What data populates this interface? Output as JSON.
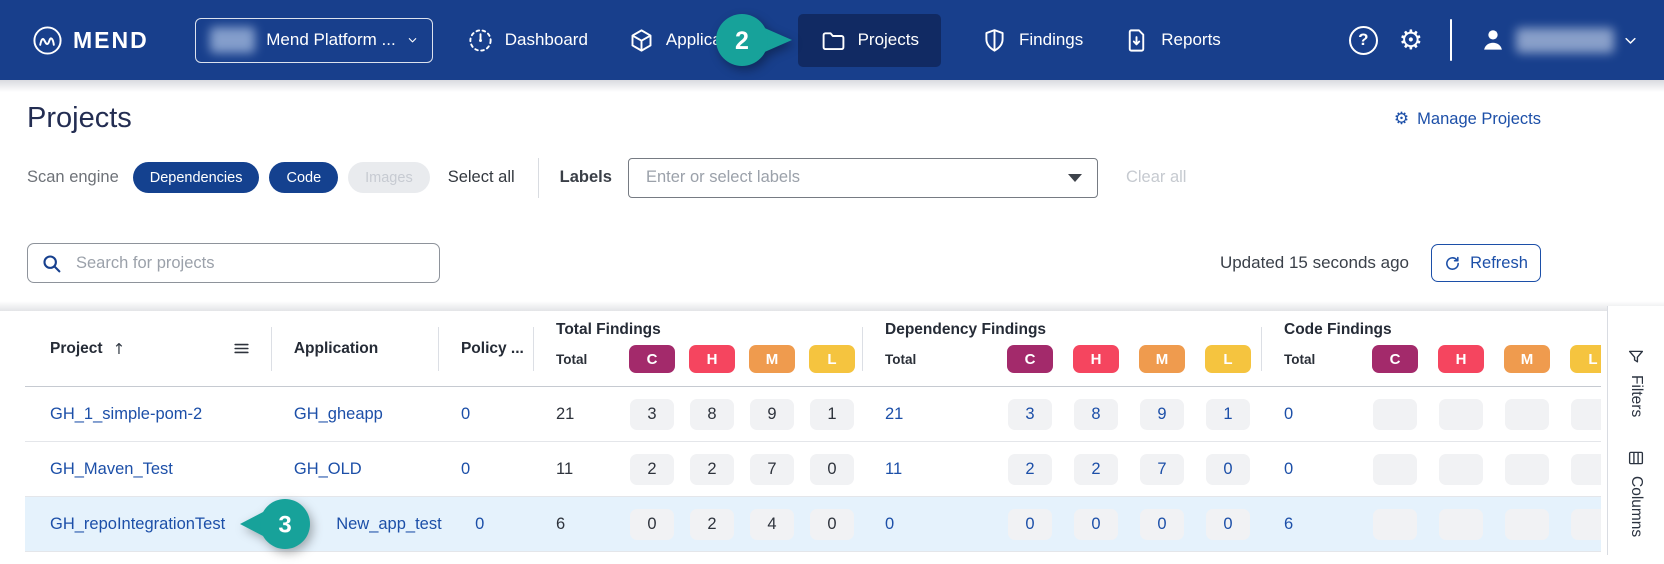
{
  "colors": {
    "navbar_bg": "#183F8C",
    "navbar_active_bg": "#112A63",
    "marker_teal": "#17A29A",
    "link_blue": "#1C4FA8",
    "row_highlight": "#E5F2FC",
    "severity": {
      "C": "#A32A6B",
      "H": "#F5455F",
      "M": "#EF9B4E",
      "L": "#F5C43F"
    }
  },
  "navbar": {
    "brand": "MEND",
    "org_selector": {
      "label": "Mend Platform ..."
    },
    "items": [
      {
        "label": "Dashboard",
        "icon": "gauge-icon"
      },
      {
        "label": "Applications",
        "icon": "cube-icon"
      },
      {
        "label": "Projects",
        "icon": "folder-icon",
        "active": true
      },
      {
        "label": "Findings",
        "icon": "shield-icon"
      },
      {
        "label": "Reports",
        "icon": "report-icon"
      }
    ],
    "help": "?"
  },
  "annotations": {
    "step2": "2",
    "step3": "3"
  },
  "page": {
    "title": "Projects",
    "manage_projects": "Manage Projects"
  },
  "filters": {
    "scan_engine_label": "Scan engine",
    "chips": [
      {
        "label": "Dependencies",
        "state": "selected"
      },
      {
        "label": "Code",
        "state": "selected"
      },
      {
        "label": "Images",
        "state": "disabled"
      }
    ],
    "select_all": "Select all",
    "labels_label": "Labels",
    "labels_placeholder": "Enter or select labels",
    "clear_all": "Clear all"
  },
  "toolbar": {
    "search_placeholder": "Search for projects",
    "updated": "Updated 15 seconds ago",
    "refresh": "Refresh"
  },
  "table": {
    "columns": {
      "project": "Project",
      "application": "Application",
      "policy": "Policy ..."
    },
    "groups": [
      {
        "title": "Total Findings"
      },
      {
        "title": "Dependency Findings"
      },
      {
        "title": "Code Findings"
      }
    ],
    "total_label": "Total",
    "severities": [
      "C",
      "H",
      "M",
      "L"
    ],
    "rows": [
      {
        "project": "GH_1_simple-pom-2",
        "application": "GH_gheapp",
        "policy": "0",
        "total_findings": {
          "total": "21",
          "C": "3",
          "H": "8",
          "M": "9",
          "L": "1"
        },
        "dependency_findings": {
          "total": "21",
          "C": "3",
          "H": "8",
          "M": "9",
          "L": "1"
        },
        "code_findings": {
          "total": "0",
          "C": "",
          "H": "",
          "M": "",
          "L": ""
        }
      },
      {
        "project": "GH_Maven_Test",
        "application": "GH_OLD",
        "policy": "0",
        "total_findings": {
          "total": "11",
          "C": "2",
          "H": "2",
          "M": "7",
          "L": "0"
        },
        "dependency_findings": {
          "total": "11",
          "C": "2",
          "H": "2",
          "M": "7",
          "L": "0"
        },
        "code_findings": {
          "total": "0",
          "C": "",
          "H": "",
          "M": "",
          "L": ""
        }
      },
      {
        "project": "GH_repoIntegrationTest",
        "application": "New_app_test",
        "policy": "0",
        "highlighted": true,
        "marker": "3",
        "total_findings": {
          "total": "6",
          "C": "0",
          "H": "2",
          "M": "4",
          "L": "0"
        },
        "dependency_findings": {
          "total": "0",
          "C": "0",
          "H": "0",
          "M": "0",
          "L": "0"
        },
        "code_findings": {
          "total": "6",
          "C": "",
          "H": "",
          "M": "",
          "L": ""
        }
      }
    ]
  },
  "side_rail": {
    "filters": "Filters",
    "columns": "Columns"
  }
}
